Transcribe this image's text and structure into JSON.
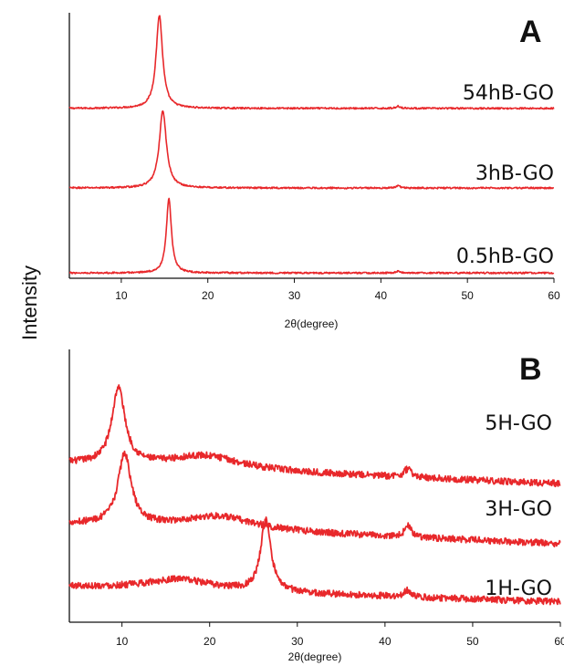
{
  "colors": {
    "trace": "#e8282b",
    "axis": "#111111"
  },
  "ylabel": "Intensity",
  "chart_data": [
    {
      "type": "line",
      "panel": "A",
      "xlabel": "2θ(degree)",
      "xlim": [
        4,
        60
      ],
      "x_ticks": [
        10,
        20,
        30,
        40,
        50,
        60
      ],
      "grid": false,
      "series": [
        {
          "name": "54hB-GO",
          "baseline": 0.64,
          "peaks": [
            {
              "x": 14.4,
              "height": 0.35,
              "width": 0.45
            },
            {
              "x": 42.0,
              "height": 0.008,
              "width": 0.3
            }
          ],
          "noise": 0.003
        },
        {
          "name": "3hB-GO",
          "baseline": 0.34,
          "peaks": [
            {
              "x": 14.8,
              "height": 0.29,
              "width": 0.5
            },
            {
              "x": 42.0,
              "height": 0.008,
              "width": 0.3
            }
          ],
          "noise": 0.003
        },
        {
          "name": "0.5hB-GO",
          "baseline": 0.02,
          "peaks": [
            {
              "x": 15.5,
              "height": 0.28,
              "width": 0.35
            },
            {
              "x": 42.0,
              "height": 0.006,
              "width": 0.3
            }
          ],
          "noise": 0.003
        }
      ]
    },
    {
      "type": "line",
      "panel": "B",
      "xlabel": "2θ(degree)",
      "xlim": [
        4,
        60
      ],
      "x_ticks": [
        10,
        20,
        30,
        40,
        50,
        60
      ],
      "grid": false,
      "series": [
        {
          "name": "5H-GO",
          "baseline": 0.58,
          "slope": -0.0013,
          "peaks": [
            {
              "x": 9.6,
              "height": 0.28,
              "width": 0.9
            },
            {
              "x": 19.5,
              "height": 0.05,
              "width": 5.0
            },
            {
              "x": 42.6,
              "height": 0.03,
              "width": 0.5
            }
          ],
          "noise": 0.012
        },
        {
          "name": "3H-GO",
          "baseline": 0.36,
          "slope": -0.0013,
          "peaks": [
            {
              "x": 10.3,
              "height": 0.26,
              "width": 0.9
            },
            {
              "x": 21.0,
              "height": 0.05,
              "width": 5.0
            },
            {
              "x": 42.6,
              "height": 0.04,
              "width": 0.5
            }
          ],
          "noise": 0.012
        },
        {
          "name": "1H-GO",
          "baseline": 0.13,
          "slope": -0.001,
          "peaks": [
            {
              "x": 26.4,
              "height": 0.26,
              "width": 0.7
            },
            {
              "x": 16.5,
              "height": 0.04,
              "width": 4.5
            },
            {
              "x": 42.6,
              "height": 0.025,
              "width": 0.5
            }
          ],
          "noise": 0.012
        }
      ]
    }
  ]
}
